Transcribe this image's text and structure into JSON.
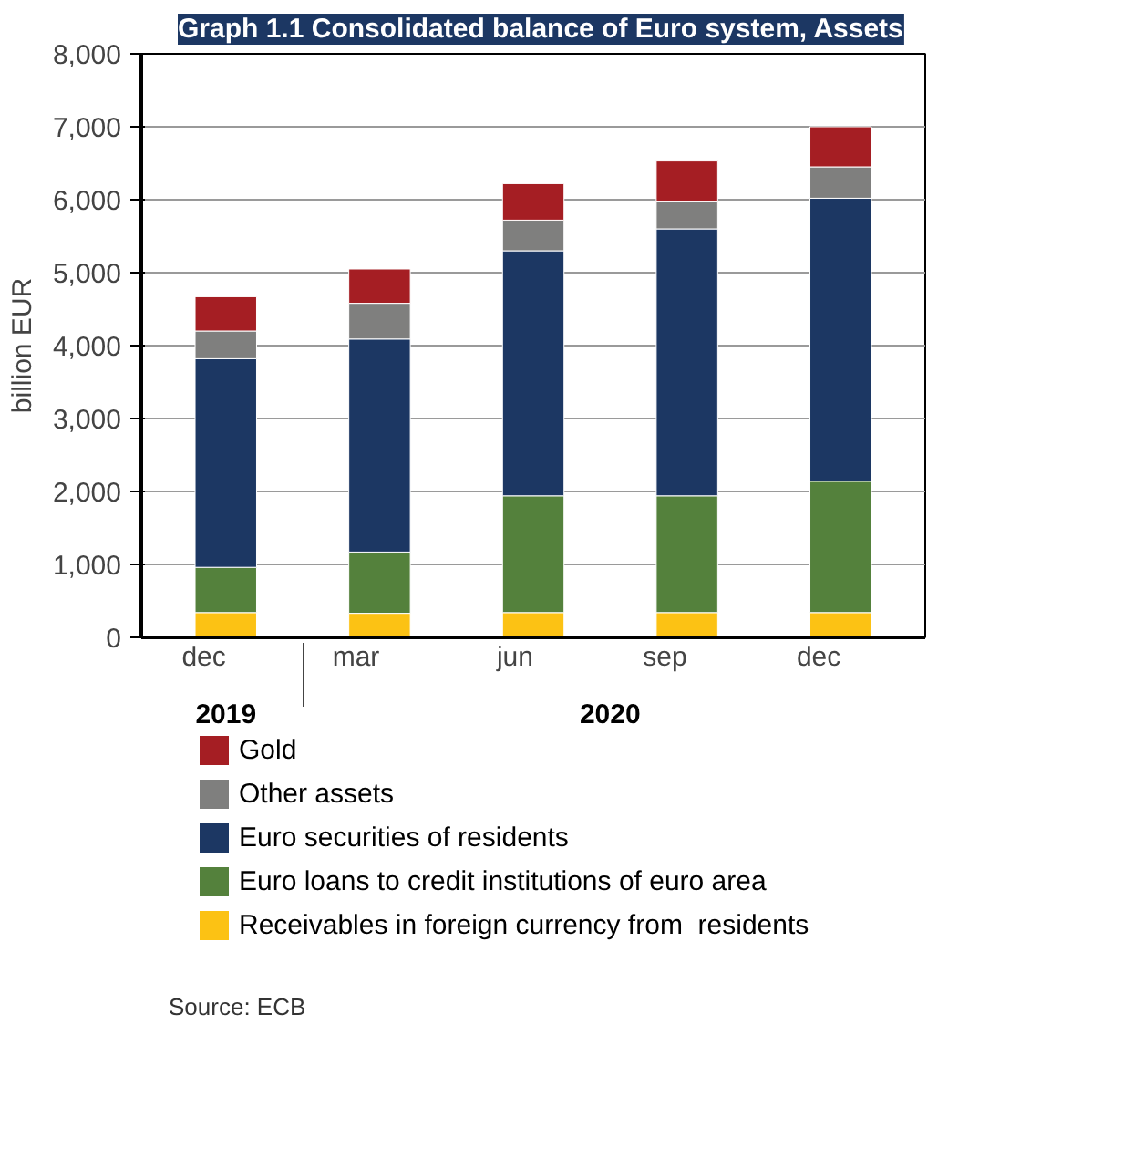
{
  "chart_data": {
    "type": "bar",
    "title": "Graph 1.1 Consolidated balance of Euro system, Assets",
    "ylabel": "billion EUR",
    "categories": [
      "dec",
      "mar",
      "jun",
      "sep",
      "dec"
    ],
    "stacked": true,
    "series": [
      {
        "name": "Receivables in foreign currency from  residents",
        "color": "#fcc214",
        "values": [
          340,
          330,
          340,
          340,
          340
        ]
      },
      {
        "name": "Euro loans to credit institutions of euro area",
        "color": "#54813c",
        "values": [
          620,
          840,
          1600,
          1600,
          1800
        ]
      },
      {
        "name": "Euro securities of residents",
        "color": "#1c3763",
        "values": [
          2860,
          2920,
          3360,
          3660,
          3880
        ]
      },
      {
        "name": "Other assets",
        "color": "#7f7f7e",
        "values": [
          380,
          490,
          420,
          380,
          430
        ]
      },
      {
        "name": "Gold",
        "color": "#a51e23",
        "values": [
          470,
          470,
          500,
          550,
          550
        ]
      }
    ],
    "ylim": [
      0,
      8000
    ],
    "yticks": [
      {
        "value": 0,
        "label": "0"
      },
      {
        "value": 1000,
        "label": "1,000"
      },
      {
        "value": 2000,
        "label": "2,000"
      },
      {
        "value": 3000,
        "label": "3,000"
      },
      {
        "value": 4000,
        "label": "4,000"
      },
      {
        "value": 5000,
        "label": "5,000"
      },
      {
        "value": 6000,
        "label": "6,000"
      },
      {
        "value": 7000,
        "label": "7,000"
      },
      {
        "value": 8000,
        "label": "8,000"
      }
    ],
    "grid": "y",
    "legend": "bottom",
    "annotations": [
      "2019",
      "2020",
      "Source: ECB"
    ]
  }
}
